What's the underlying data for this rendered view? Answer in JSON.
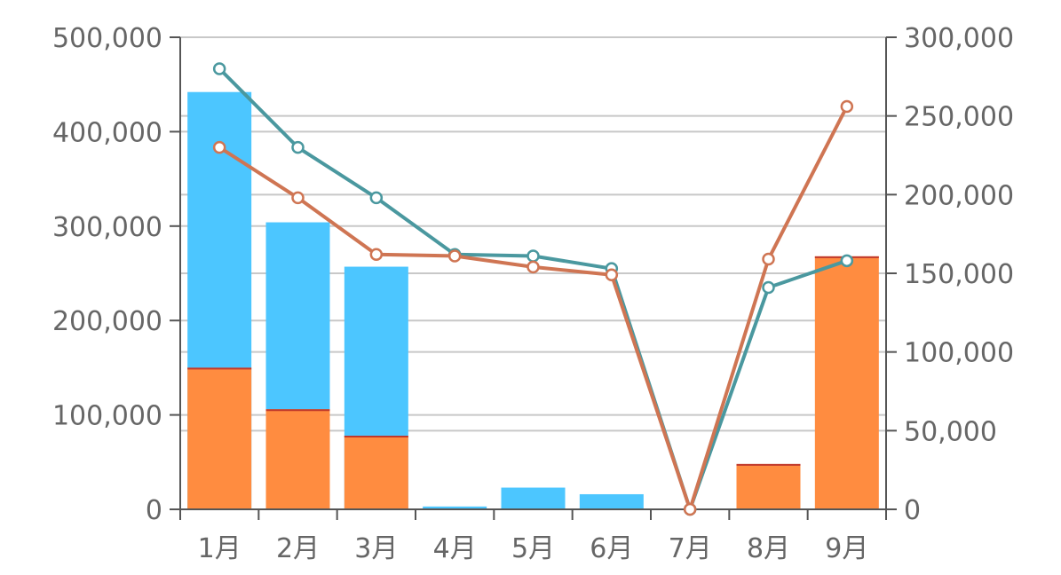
{
  "chart_data": {
    "type": "bar",
    "title": "",
    "categories": [
      "1月",
      "2月",
      "3月",
      "4月",
      "5月",
      "6月",
      "7月",
      "8月",
      "9月"
    ],
    "left_axis": {
      "min": 0,
      "max": 500000,
      "ticks": [
        0,
        100000,
        200000,
        300000,
        400000,
        500000
      ],
      "tick_labels": [
        "0",
        "100,000",
        "200,000",
        "300,000",
        "400,000",
        "500,000"
      ]
    },
    "right_axis": {
      "min": 0,
      "max": 300000,
      "ticks": [
        0,
        50000,
        100000,
        150000,
        200000,
        250000,
        300000
      ],
      "tick_labels": [
        "0",
        "50,000",
        "100,000",
        "150,000",
        "200,000",
        "250,000",
        "300,000"
      ]
    },
    "bar_series": [
      {
        "color": "#4cc6ff",
        "values": [
          442000,
          304000,
          257000,
          3000,
          23000,
          16000,
          0,
          0,
          0
        ]
      },
      {
        "color": "#ff8c40",
        "edge_color": "#c0392b",
        "values": [
          150000,
          106000,
          78000,
          0,
          0,
          0,
          0,
          48000,
          268000
        ]
      }
    ],
    "line_series": [
      {
        "color": "#4a989f",
        "axis": "right",
        "values": [
          280000,
          230000,
          198000,
          162000,
          161000,
          153000,
          0,
          141000,
          158000
        ]
      },
      {
        "color": "#cf7553",
        "axis": "right",
        "values": [
          230000,
          198000,
          162000,
          161000,
          154000,
          149000,
          0,
          159000,
          256000
        ]
      }
    ],
    "grid": true,
    "legend": "none"
  }
}
